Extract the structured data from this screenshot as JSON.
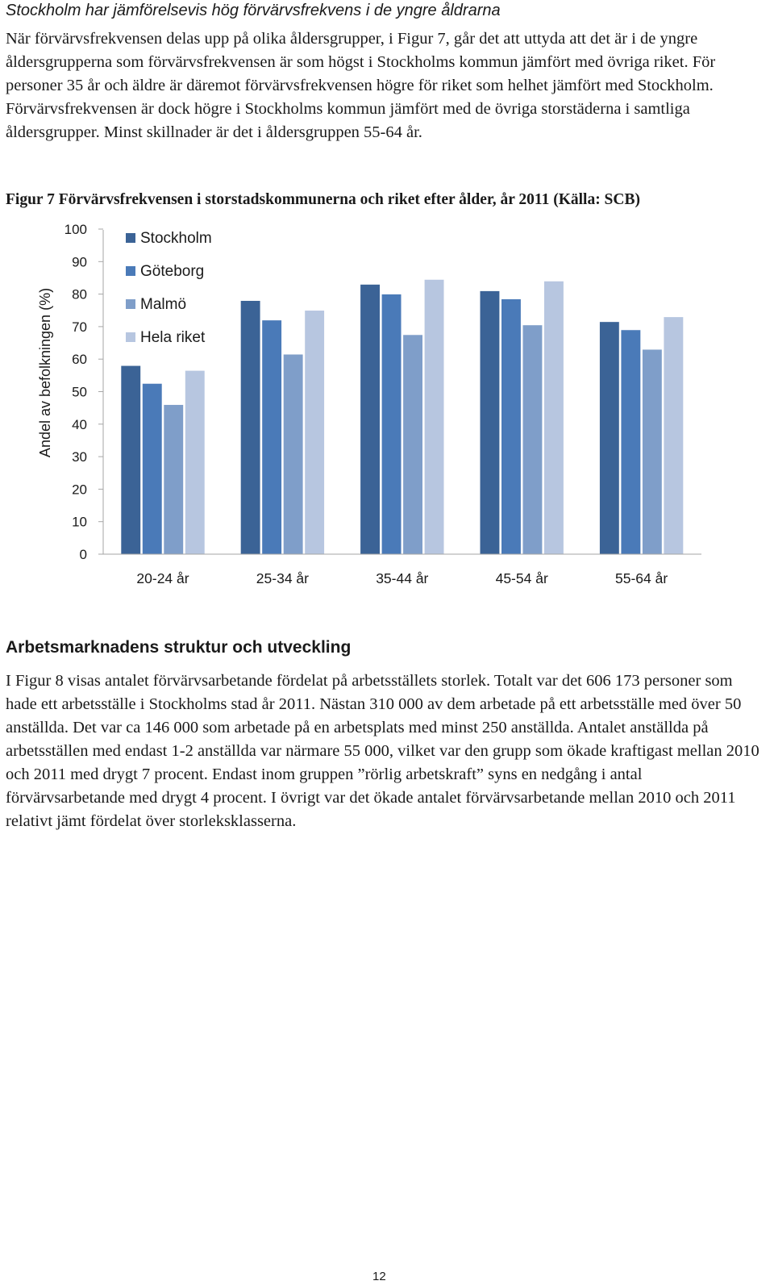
{
  "document": {
    "subheading": "Stockholm har jämförelsevis hög förvärvsfrekvens i de yngre åldrarna",
    "paragraph_1": "När förvärvsfrekvensen delas upp på olika åldersgrupper, i Figur 7, går det att uttyda att det är i de yngre åldersgrupperna som förvärvsfrekvensen är som högst i Stockholms kommun jämfört med övriga riket. För personer 35 år och äldre är däremot förvärvsfrekvensen högre för riket som helhet jämfört med Stockholm. Förvärvsfrekvensen är dock högre i Stockholms kommun jämfört med de övriga storstäderna i samtliga åldersgrupper. Minst skillnader är det i åldersgruppen 55-64 år.",
    "figure_caption": "Figur 7 Förvärvsfrekvensen i storstadskommunerna och riket efter ålder, år 2011 (Källa: SCB)",
    "section_heading": "Arbetsmarknadens struktur och utveckling",
    "paragraph_2": "I Figur 8 visas antalet förvärvsarbetande fördelat på arbetsställets storlek. Totalt var det 606 173 personer som hade ett arbetsställe i Stockholms stad år 2011. Nästan 310 000 av dem arbetade på ett arbetsställe med över 50 anställda. Det var ca 146 000 som arbetade på en arbetsplats med minst 250 anställda. Antalet anställda på arbetsställen med endast 1-2 anställda var närmare 55 000, vilket var den grupp som ökade kraftigast mellan 2010 och 2011 med drygt 7 procent. Endast inom gruppen ”rörlig arbetskraft” syns en nedgång i antal förvärvsarbetande med drygt 4 procent. I övrigt var det ökade antalet förvärvsarbetande mellan 2010 och 2011 relativt jämt fördelat över storleksklasserna.",
    "page_number": "12"
  },
  "chart_data": {
    "type": "bar",
    "title": "",
    "xlabel": "",
    "ylabel": "Andel av befolkningen (%)",
    "ylim": [
      0,
      100
    ],
    "yticks": [
      "0",
      "10",
      "20",
      "30",
      "40",
      "50",
      "60",
      "70",
      "80",
      "90",
      "100"
    ],
    "grid": false,
    "legend_position": "top-left",
    "categories": [
      "20-24 år",
      "25-34 år",
      "35-44 år",
      "45-54 år",
      "55-64 år"
    ],
    "series": [
      {
        "name": "Stockholm",
        "color": "#3b6396",
        "values": [
          58,
          78,
          83,
          81,
          71.5
        ]
      },
      {
        "name": "Göteborg",
        "color": "#4a7ab8",
        "values": [
          52.5,
          72,
          80,
          78.5,
          69
        ]
      },
      {
        "name": "Malmö",
        "color": "#7f9ec9",
        "values": [
          46,
          61.5,
          67.5,
          70.5,
          63
        ]
      },
      {
        "name": "Hela riket",
        "color": "#b7c6e0",
        "values": [
          56.5,
          75,
          84.5,
          84,
          73
        ]
      }
    ]
  }
}
